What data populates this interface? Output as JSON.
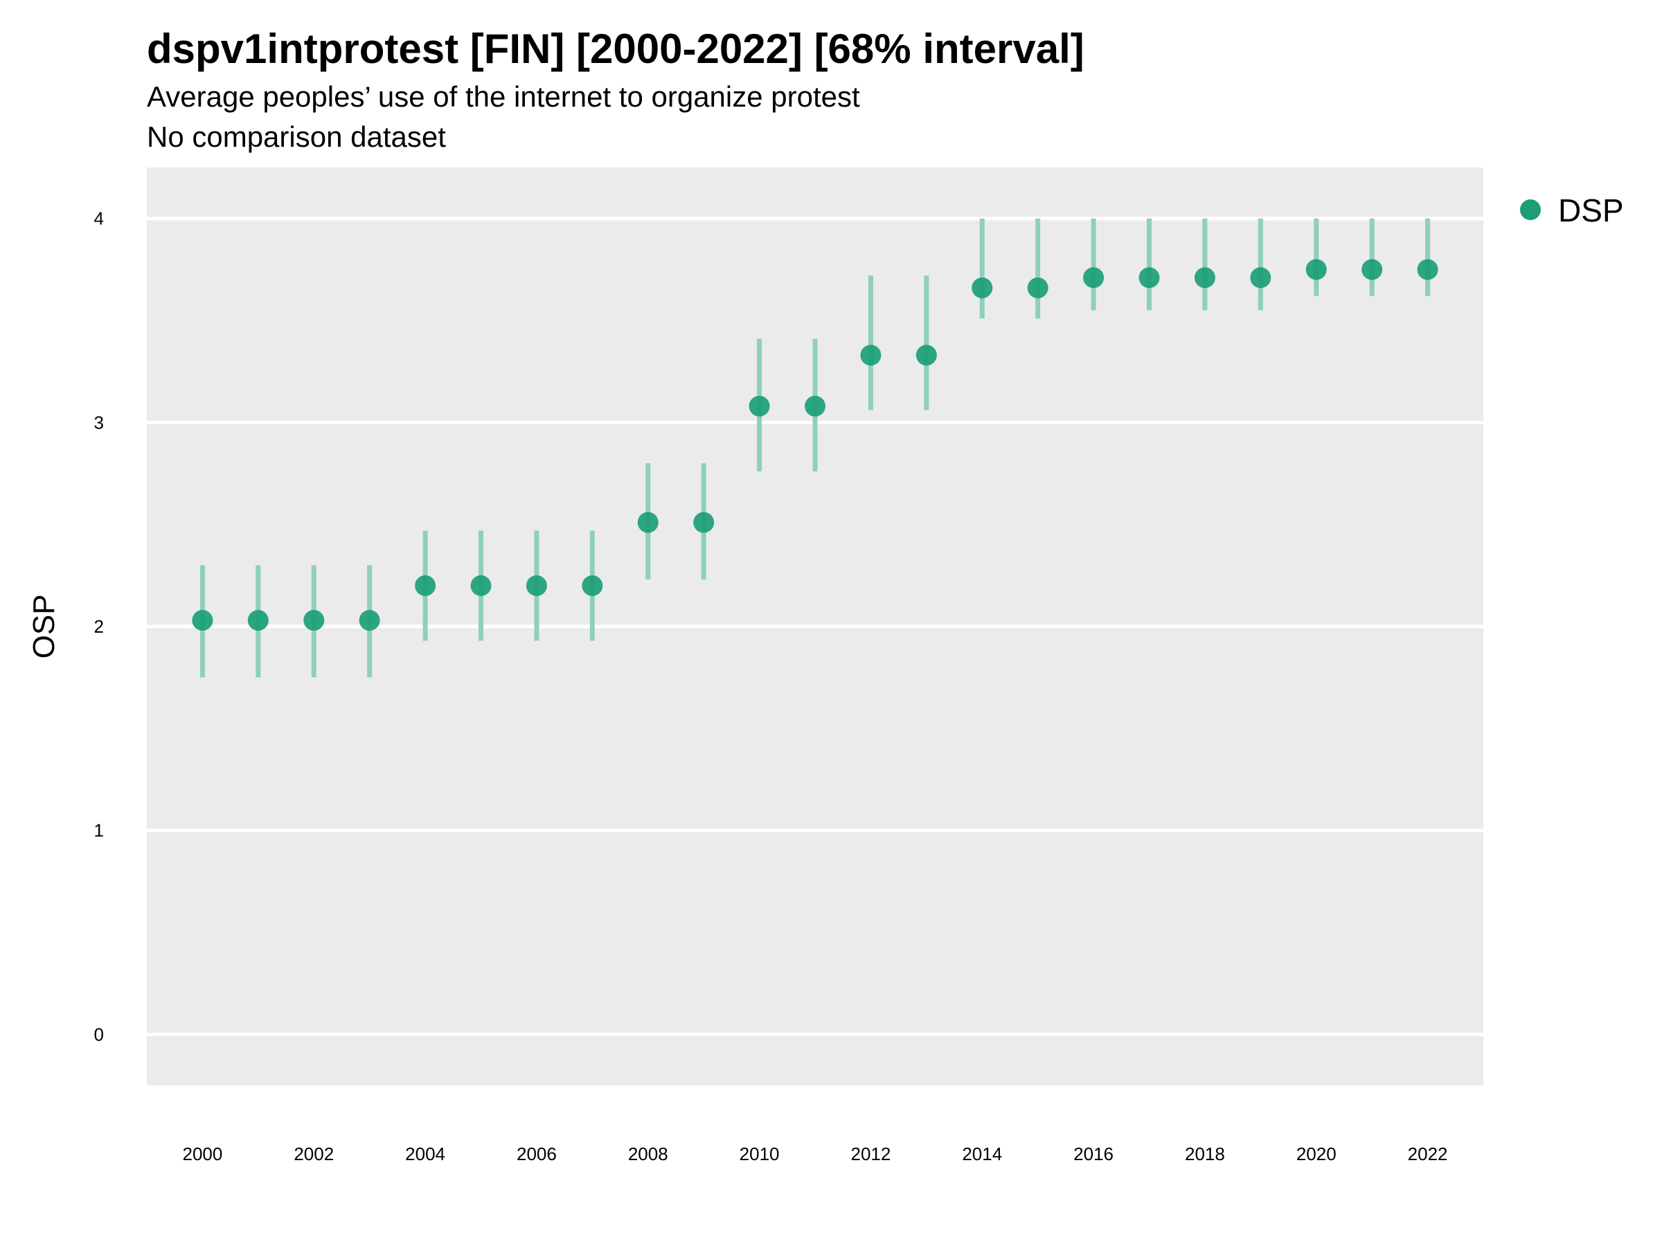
{
  "chart_data": {
    "type": "scatter",
    "title": "dspv1intprotest [FIN] [2000-2022] [68% interval]",
    "subtitle": "Average peoples’ use of the internet to organize protest",
    "subtitle2": "No comparison dataset",
    "xlabel": "",
    "ylabel": "OSP",
    "xlim": [
      1999,
      2023
    ],
    "ylim": [
      -0.25,
      4.25
    ],
    "x_ticks": [
      2000,
      2002,
      2004,
      2006,
      2008,
      2010,
      2012,
      2014,
      2016,
      2018,
      2020,
      2022
    ],
    "y_ticks": [
      0,
      1,
      2,
      3,
      4
    ],
    "grid": true,
    "legend_position": "right",
    "colors": {
      "panel": "#ebebeb",
      "grid": "#ffffff",
      "point": "#1b9e77",
      "interval": "#8fcfbc"
    },
    "series": [
      {
        "name": "DSP",
        "x": [
          2000,
          2001,
          2002,
          2003,
          2004,
          2005,
          2006,
          2007,
          2008,
          2009,
          2010,
          2011,
          2012,
          2013,
          2014,
          2015,
          2016,
          2017,
          2018,
          2019,
          2020,
          2021,
          2022
        ],
        "y": [
          2.03,
          2.03,
          2.03,
          2.03,
          2.2,
          2.2,
          2.2,
          2.2,
          2.51,
          2.51,
          3.08,
          3.08,
          3.33,
          3.33,
          3.66,
          3.66,
          3.71,
          3.71,
          3.71,
          3.71,
          3.75,
          3.75,
          3.75
        ],
        "lower": [
          1.75,
          1.75,
          1.75,
          1.75,
          1.93,
          1.93,
          1.93,
          1.93,
          2.23,
          2.23,
          2.76,
          2.76,
          3.06,
          3.06,
          3.51,
          3.51,
          3.55,
          3.55,
          3.55,
          3.55,
          3.62,
          3.62,
          3.62
        ],
        "upper": [
          2.3,
          2.3,
          2.3,
          2.3,
          2.47,
          2.47,
          2.47,
          2.47,
          2.8,
          2.8,
          3.41,
          3.41,
          3.72,
          3.72,
          4.0,
          4.0,
          4.0,
          4.0,
          4.0,
          4.0,
          4.0,
          4.0,
          4.0
        ]
      }
    ]
  }
}
